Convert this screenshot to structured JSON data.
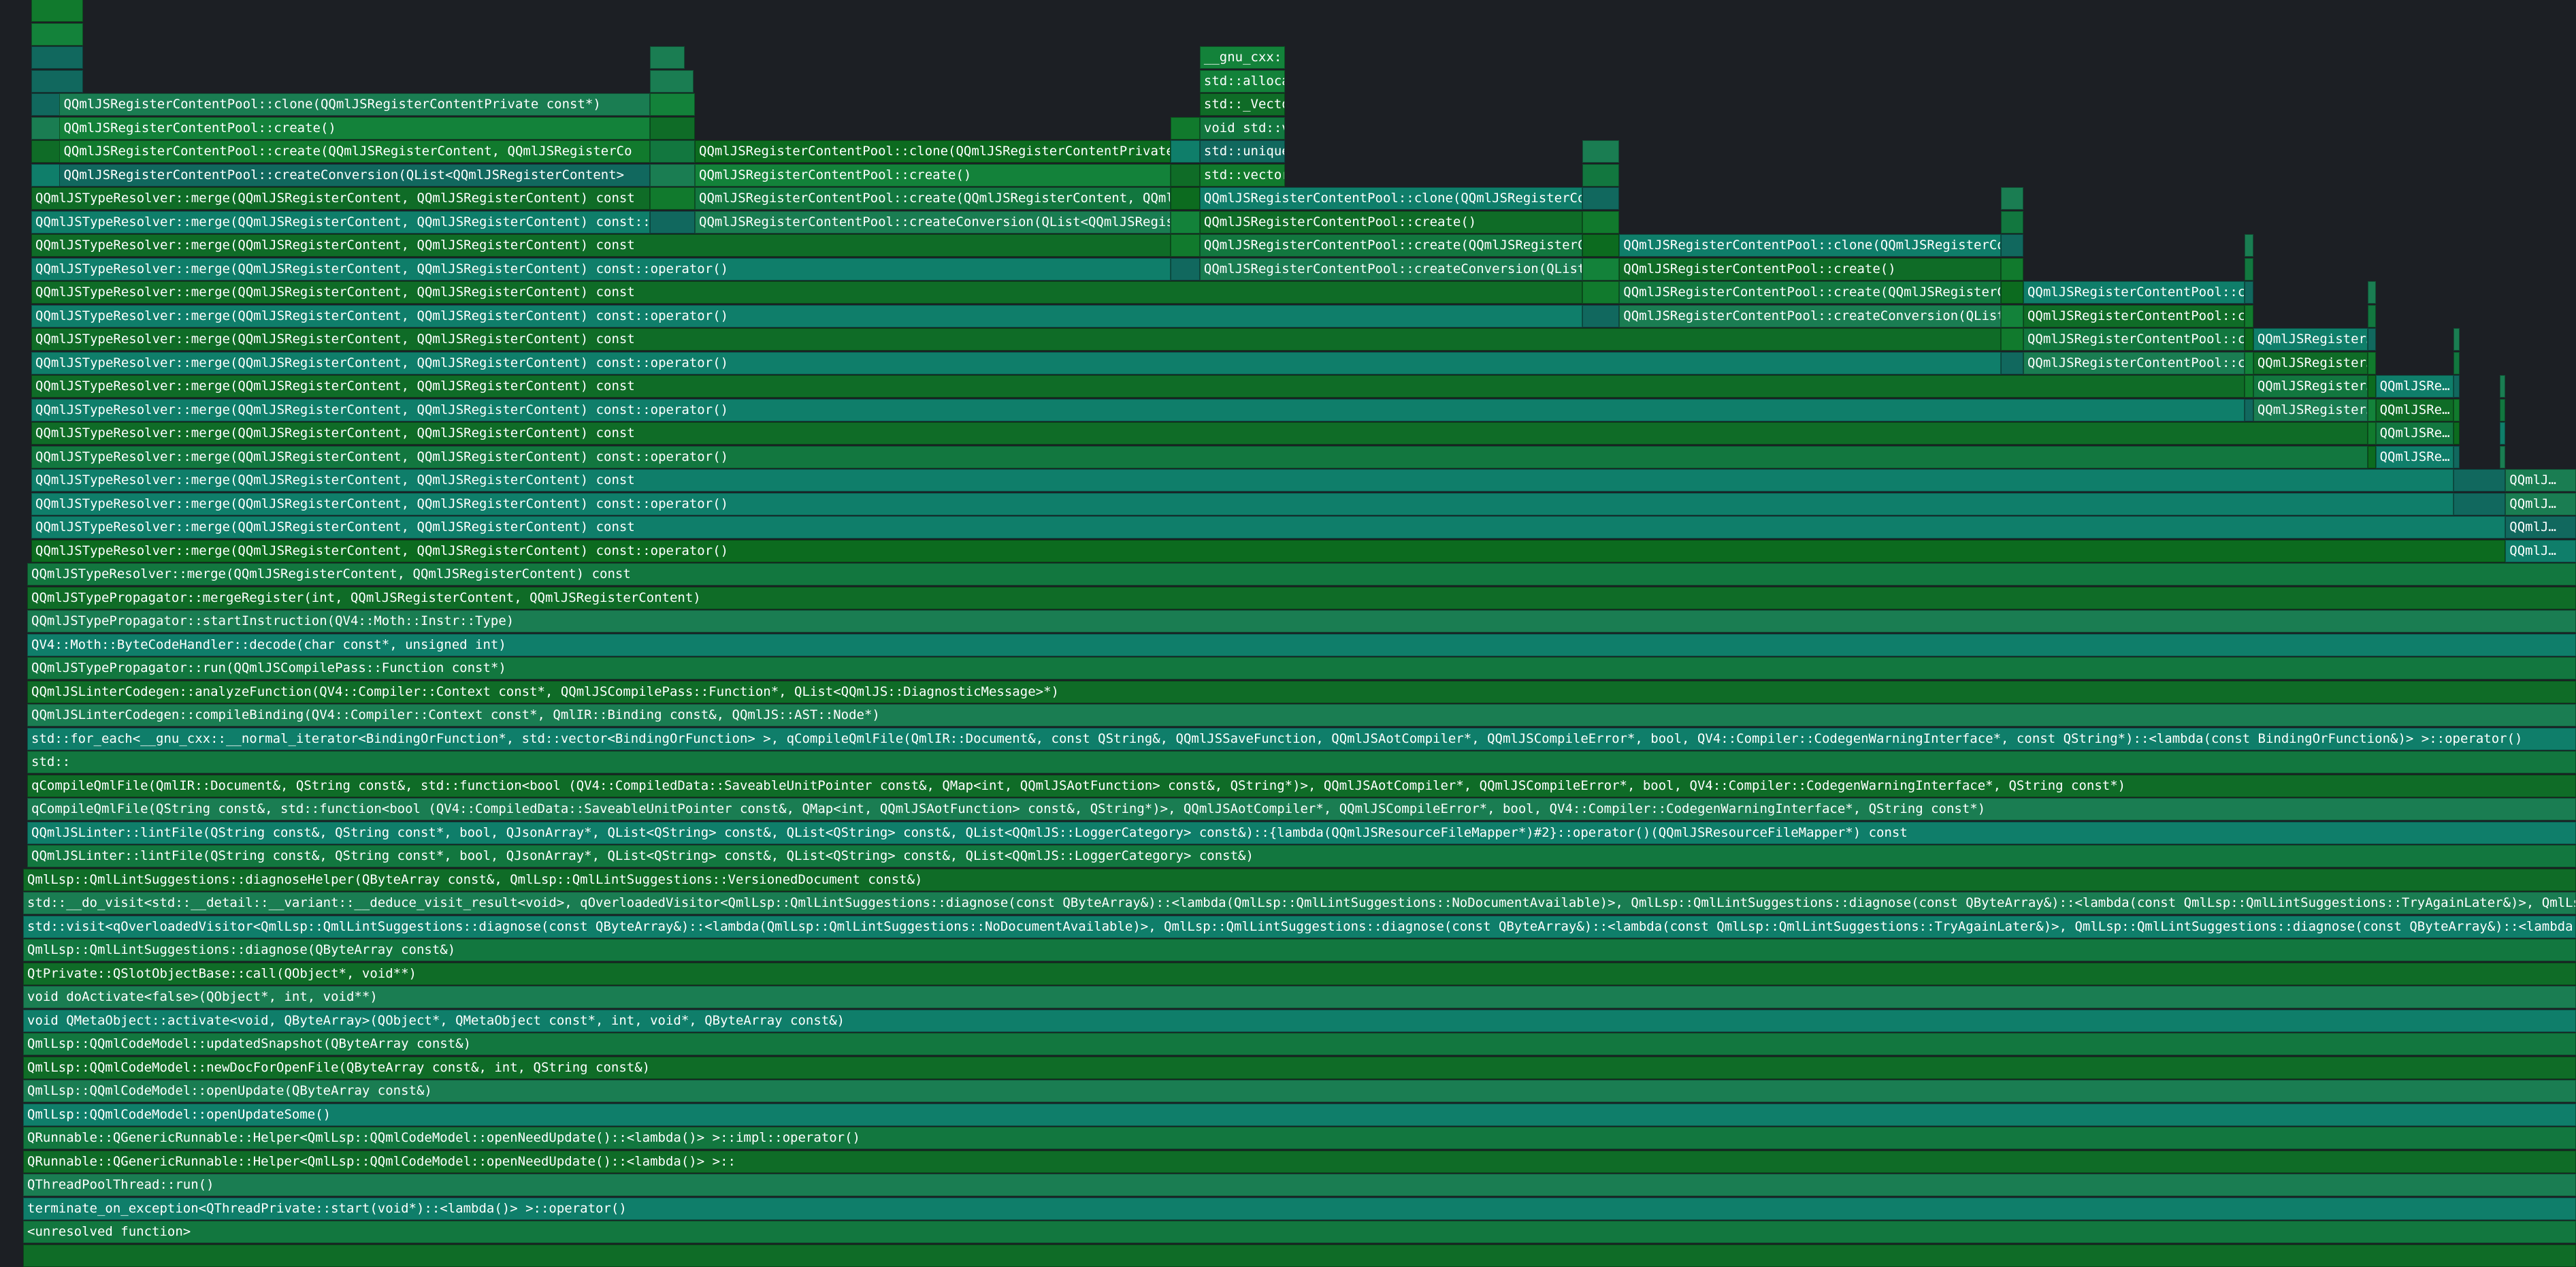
{
  "view": "flame-graph",
  "colors": [
    "#117a2d",
    "#0f6c27",
    "#13823a",
    "#1a7d52",
    "#11685e",
    "#0f7e6a",
    "#0c6b1f",
    "#12773f"
  ],
  "frames": [
    {
      "r": 0,
      "a": 0,
      "b": 42,
      "t": ""
    },
    {
      "r": 1,
      "a": 0,
      "b": 42,
      "t": ""
    },
    {
      "r": 2,
      "a": 0,
      "b": 42,
      "t": ""
    },
    {
      "r": 2,
      "a": 920,
      "b": 972,
      "t": ""
    },
    {
      "r": 2,
      "a": 1738,
      "b": 1865,
      "t": "__gnu_cxx::"
    },
    {
      "r": 3,
      "a": 0,
      "b": 42,
      "t": ""
    },
    {
      "r": 3,
      "a": 920,
      "b": 985,
      "t": ""
    },
    {
      "r": 3,
      "a": 1738,
      "b": 1865,
      "t": "std::alloca"
    },
    {
      "r": 4,
      "a": 0,
      "b": 42,
      "t": ""
    },
    {
      "r": 4,
      "a": 42,
      "b": 920,
      "t": "QQmlJSRegisterContentPool::clone(QQmlJSRegisterContentPrivate const*)"
    },
    {
      "r": 4,
      "a": 920,
      "b": 987,
      "t": ""
    },
    {
      "r": 4,
      "a": 1738,
      "b": 1865,
      "t": "std::_Vecto"
    },
    {
      "r": 5,
      "a": 0,
      "b": 42,
      "t": ""
    },
    {
      "r": 5,
      "a": 42,
      "b": 920,
      "t": "QQmlJSRegisterContentPool::create()"
    },
    {
      "r": 5,
      "a": 920,
      "b": 987,
      "t": ""
    },
    {
      "r": 5,
      "a": 1695,
      "b": 1738,
      "t": ""
    },
    {
      "r": 5,
      "a": 1738,
      "b": 1865,
      "t": "void std::v"
    },
    {
      "r": 6,
      "a": 0,
      "b": 42,
      "t": ""
    },
    {
      "r": 6,
      "a": 42,
      "b": 920,
      "t": "QQmlJSRegisterContentPool::create(QQmlJSRegisterContent, QQmlJSRegisterCo"
    },
    {
      "r": 6,
      "a": 920,
      "b": 987,
      "t": ""
    },
    {
      "r": 6,
      "a": 987,
      "b": 1695,
      "t": "QQmlJSRegisterContentPool::clone(QQmlJSRegisterContentPrivate cor"
    },
    {
      "r": 6,
      "a": 1695,
      "b": 1738,
      "t": ""
    },
    {
      "r": 6,
      "a": 1738,
      "b": 1865,
      "t": "std::unique"
    },
    {
      "r": 6,
      "a": 2307,
      "b": 2362,
      "t": ""
    },
    {
      "r": 7,
      "a": 0,
      "b": 42,
      "t": ""
    },
    {
      "r": 7,
      "a": 42,
      "b": 920,
      "t": "QQmlJSRegisterContentPool::createConversion(QList<QQmlJSRegisterContent>"
    },
    {
      "r": 7,
      "a": 920,
      "b": 987,
      "t": ""
    },
    {
      "r": 7,
      "a": 987,
      "b": 1695,
      "t": "QQmlJSRegisterContentPool::create()"
    },
    {
      "r": 7,
      "a": 1695,
      "b": 1738,
      "t": ""
    },
    {
      "r": 7,
      "a": 1738,
      "b": 1865,
      "t": "std::vector"
    },
    {
      "r": 7,
      "a": 2307,
      "b": 2362,
      "t": ""
    },
    {
      "r": 8,
      "a": 0,
      "b": 920,
      "t": "QQmlJSTypeResolver::merge(QQmlJSRegisterContent, QQmlJSRegisterContent) const"
    },
    {
      "r": 8,
      "a": 920,
      "b": 987,
      "t": ""
    },
    {
      "r": 8,
      "a": 987,
      "b": 1695,
      "t": "QQmlJSRegisterContentPool::create(QQmlJSRegisterContent, QQmlJSRe"
    },
    {
      "r": 8,
      "a": 1695,
      "b": 1738,
      "t": ""
    },
    {
      "r": 8,
      "a": 1738,
      "b": 2307,
      "t": "QQmlJSRegisterContentPool::clone(QQmlJSRegisterConte"
    },
    {
      "r": 8,
      "a": 2307,
      "b": 2362,
      "t": ""
    },
    {
      "r": 8,
      "a": 2930,
      "b": 2963,
      "t": ""
    },
    {
      "r": 9,
      "a": 0,
      "b": 920,
      "t": "QQmlJSTypeResolver::merge(QQmlJSRegisterContent, QQmlJSRegisterContent) const::o"
    },
    {
      "r": 9,
      "a": 920,
      "b": 987,
      "t": ""
    },
    {
      "r": 9,
      "a": 987,
      "b": 1695,
      "t": "QQmlJSRegisterContentPool::createConversion(QList<QQmlJSRegisterC"
    },
    {
      "r": 9,
      "a": 1695,
      "b": 1738,
      "t": ""
    },
    {
      "r": 9,
      "a": 1738,
      "b": 2307,
      "t": "QQmlJSRegisterContentPool::create()"
    },
    {
      "r": 9,
      "a": 2307,
      "b": 2362,
      "t": ""
    },
    {
      "r": 9,
      "a": 2930,
      "b": 2963,
      "t": ""
    },
    {
      "r": 10,
      "a": 0,
      "b": 1695,
      "t": "QQmlJSTypeResolver::merge(QQmlJSRegisterContent, QQmlJSRegisterContent) const"
    },
    {
      "r": 10,
      "a": 1695,
      "b": 1738,
      "t": ""
    },
    {
      "r": 10,
      "a": 1738,
      "b": 2307,
      "t": "QQmlJSRegisterContentPool::create(QQmlJSRegisterCont"
    },
    {
      "r": 10,
      "a": 2307,
      "b": 2362,
      "t": ""
    },
    {
      "r": 10,
      "a": 2362,
      "b": 2930,
      "t": "QQmlJSRegisterContentPool::clone(QQmlJSRegisterConte"
    },
    {
      "r": 10,
      "a": 2930,
      "b": 2963,
      "t": ""
    },
    {
      "r": 10,
      "a": 3292,
      "b": 3305,
      "t": ""
    },
    {
      "r": 11,
      "a": 0,
      "b": 1695,
      "t": "QQmlJSTypeResolver::merge(QQmlJSRegisterContent, QQmlJSRegisterContent) const::operator()"
    },
    {
      "r": 11,
      "a": 1695,
      "b": 1738,
      "t": ""
    },
    {
      "r": 11,
      "a": 1738,
      "b": 2307,
      "t": "QQmlJSRegisterContentPool::createConversion(QList<QQ"
    },
    {
      "r": 11,
      "a": 2307,
      "b": 2362,
      "t": ""
    },
    {
      "r": 11,
      "a": 2362,
      "b": 2930,
      "t": "QQmlJSRegisterContentPool::create()"
    },
    {
      "r": 11,
      "a": 2930,
      "b": 2963,
      "t": ""
    },
    {
      "r": 11,
      "a": 3292,
      "b": 3305,
      "t": ""
    },
    {
      "r": 12,
      "a": 0,
      "b": 2307,
      "t": "QQmlJSTypeResolver::merge(QQmlJSRegisterContent, QQmlJSRegisterContent) const"
    },
    {
      "r": 12,
      "a": 2307,
      "b": 2362,
      "t": ""
    },
    {
      "r": 12,
      "a": 2362,
      "b": 2930,
      "t": "QQmlJSRegisterContentPool::create(QQmlJSRegisterCont"
    },
    {
      "r": 12,
      "a": 2930,
      "b": 2963,
      "t": ""
    },
    {
      "r": 12,
      "a": 2963,
      "b": 3292,
      "t": "QQmlJSRegisterContentPool::cl"
    },
    {
      "r": 12,
      "a": 3292,
      "b": 3305,
      "t": ""
    },
    {
      "r": 12,
      "a": 3475,
      "b": 3487,
      "t": ""
    },
    {
      "r": 13,
      "a": 0,
      "b": 2307,
      "t": "QQmlJSTypeResolver::merge(QQmlJSRegisterContent, QQmlJSRegisterContent) const::operator()"
    },
    {
      "r": 13,
      "a": 2307,
      "b": 2362,
      "t": ""
    },
    {
      "r": 13,
      "a": 2362,
      "b": 2930,
      "t": "QQmlJSRegisterContentPool::createConversion(QList<QQ"
    },
    {
      "r": 13,
      "a": 2930,
      "b": 2963,
      "t": ""
    },
    {
      "r": 13,
      "a": 2963,
      "b": 3292,
      "t": "QQmlJSRegisterContentPool::cr"
    },
    {
      "r": 13,
      "a": 3292,
      "b": 3305,
      "t": ""
    },
    {
      "r": 13,
      "a": 3475,
      "b": 3487,
      "t": ""
    },
    {
      "r": 14,
      "a": 0,
      "b": 2930,
      "t": "QQmlJSTypeResolver::merge(QQmlJSRegisterContent, QQmlJSRegisterContent) const"
    },
    {
      "r": 14,
      "a": 2930,
      "b": 2963,
      "t": ""
    },
    {
      "r": 14,
      "a": 2963,
      "b": 3292,
      "t": "QQmlJSRegisterContentPool::cr"
    },
    {
      "r": 14,
      "a": 3292,
      "b": 3305,
      "t": ""
    },
    {
      "r": 14,
      "a": 3305,
      "b": 3475,
      "t": "QQmlJSRegister…"
    },
    {
      "r": 14,
      "a": 3475,
      "b": 3487,
      "t": ""
    },
    {
      "r": 14,
      "a": 3603,
      "b": 3612,
      "t": ""
    },
    {
      "r": 15,
      "a": 0,
      "b": 2930,
      "t": "QQmlJSTypeResolver::merge(QQmlJSRegisterContent, QQmlJSRegisterContent) const::operator()"
    },
    {
      "r": 15,
      "a": 2930,
      "b": 2963,
      "t": ""
    },
    {
      "r": 15,
      "a": 2963,
      "b": 3292,
      "t": "QQmlJSRegisterContentPool::cr"
    },
    {
      "r": 15,
      "a": 3292,
      "b": 3305,
      "t": ""
    },
    {
      "r": 15,
      "a": 3305,
      "b": 3475,
      "t": "QQmlJSRegister…"
    },
    {
      "r": 15,
      "a": 3475,
      "b": 3487,
      "t": ""
    },
    {
      "r": 15,
      "a": 3603,
      "b": 3612,
      "t": ""
    },
    {
      "r": 16,
      "a": 0,
      "b": 3292,
      "t": "QQmlJSTypeResolver::merge(QQmlJSRegisterContent, QQmlJSRegisterContent) const"
    },
    {
      "r": 16,
      "a": 3292,
      "b": 3305,
      "t": ""
    },
    {
      "r": 16,
      "a": 3305,
      "b": 3475,
      "t": "QQmlJSRegister…"
    },
    {
      "r": 16,
      "a": 3475,
      "b": 3487,
      "t": ""
    },
    {
      "r": 16,
      "a": 3487,
      "b": 3603,
      "t": "QQmlJSRe…"
    },
    {
      "r": 16,
      "a": 3603,
      "b": 3612,
      "t": ""
    },
    {
      "r": 16,
      "a": 3672,
      "b": 3680,
      "t": ""
    },
    {
      "r": 17,
      "a": 0,
      "b": 3292,
      "t": "QQmlJSTypeResolver::merge(QQmlJSRegisterContent, QQmlJSRegisterContent) const::operator()"
    },
    {
      "r": 17,
      "a": 3292,
      "b": 3305,
      "t": ""
    },
    {
      "r": 17,
      "a": 3305,
      "b": 3475,
      "t": "QQmlJSRegister…"
    },
    {
      "r": 17,
      "a": 3475,
      "b": 3487,
      "t": ""
    },
    {
      "r": 17,
      "a": 3487,
      "b": 3603,
      "t": "QQmlJSRe…"
    },
    {
      "r": 17,
      "a": 3603,
      "b": 3612,
      "t": ""
    },
    {
      "r": 17,
      "a": 3672,
      "b": 3680,
      "t": ""
    },
    {
      "r": 18,
      "a": 0,
      "b": 3475,
      "t": "QQmlJSTypeResolver::merge(QQmlJSRegisterContent, QQmlJSRegisterContent) const"
    },
    {
      "r": 18,
      "a": 3475,
      "b": 3487,
      "t": ""
    },
    {
      "r": 18,
      "a": 3487,
      "b": 3603,
      "t": "QQmlJSRe…"
    },
    {
      "r": 18,
      "a": 3603,
      "b": 3612,
      "t": ""
    },
    {
      "r": 18,
      "a": 3672,
      "b": 3680,
      "t": ""
    },
    {
      "r": 19,
      "a": 0,
      "b": 3475,
      "t": "QQmlJSTypeResolver::merge(QQmlJSRegisterContent, QQmlJSRegisterContent) const::operator()"
    },
    {
      "r": 19,
      "a": 3475,
      "b": 3487,
      "t": ""
    },
    {
      "r": 19,
      "a": 3487,
      "b": 3603,
      "t": "QQmlJSRe…"
    },
    {
      "r": 19,
      "a": 3603,
      "b": 3612,
      "t": ""
    },
    {
      "r": 19,
      "a": 3672,
      "b": 3680,
      "t": ""
    },
    {
      "r": 20,
      "a": 0,
      "b": 3603,
      "t": "QQmlJSTypeResolver::merge(QQmlJSRegisterContent, QQmlJSRegisterContent) const"
    },
    {
      "r": 20,
      "a": 3603,
      "b": 3680,
      "t": ""
    },
    {
      "r": 20,
      "a": 3680,
      "b": 3785,
      "t": "QQmlJ…"
    },
    {
      "r": 21,
      "a": 0,
      "b": 3603,
      "t": "QQmlJSTypeResolver::merge(QQmlJSRegisterContent, QQmlJSRegisterContent) const::operator()"
    },
    {
      "r": 21,
      "a": 3603,
      "b": 3680,
      "t": ""
    },
    {
      "r": 21,
      "a": 3680,
      "b": 3785,
      "t": "QQmlJ…"
    },
    {
      "r": 22,
      "a": 0,
      "b": 3680,
      "t": "QQmlJSTypeResolver::merge(QQmlJSRegisterContent, QQmlJSRegisterContent) const"
    },
    {
      "r": 22,
      "a": 3680,
      "b": 3785,
      "t": "QQmlJ…"
    },
    {
      "r": 23,
      "a": 0,
      "b": 3680,
      "t": "QQmlJSTypeResolver::merge(QQmlJSRegisterContent, QQmlJSRegisterContent) const::operator()"
    },
    {
      "r": 23,
      "a": 3680,
      "b": 3785,
      "t": "QQmlJ…"
    },
    {
      "r": 24,
      "a": 0,
      "b": 3785,
      "t": "QQmlJSTypeResolver::merge(QQmlJSRegisterContent, QQmlJSRegisterContent) const"
    },
    {
      "r": 25,
      "a": 0,
      "b": 3785,
      "t": "QQmlJSTypePropagator::mergeRegister(int, QQmlJSRegisterContent, QQmlJSRegisterContent)"
    },
    {
      "r": 26,
      "a": 0,
      "b": 3785,
      "t": "QQmlJSTypePropagator::startInstruction(QV4::Moth::Instr::Type)"
    },
    {
      "r": 27,
      "a": 0,
      "b": 3785,
      "t": "QV4::Moth::ByteCodeHandler::decode(char const*, unsigned int)"
    },
    {
      "r": 28,
      "a": 0,
      "b": 3785,
      "t": "QQmlJSTypePropagator::run(QQmlJSCompilePass::Function const*)"
    },
    {
      "r": 29,
      "a": 0,
      "b": 3785,
      "t": "QQmlJSLinterCodegen::analyzeFunction(QV4::Compiler::Context const*, QQmlJSCompilePass::Function*, QList<QQmlJS::DiagnosticMessage>*)"
    },
    {
      "r": 30,
      "a": 0,
      "b": 3785,
      "t": "QQmlJSLinterCodegen::compileBinding(QV4::Compiler::Context const*, QmlIR::Binding const&, QQmlJS::AST::Node*)"
    },
    {
      "r": 31,
      "a": 0,
      "b": 3785,
      "t": "std::for_each<__gnu_cxx::__normal_iterator<BindingOrFunction*, std::vector<BindingOrFunction> >, qCompileQmlFile(QmlIR::Document&, const QString&, QQmlJSSaveFunction, QQmlJSAotCompiler*, QQmlJSCompileError*, bool, QV4::Compiler::CodegenWarningInterface*, const QString*)::<lambda(const BindingOrFunction&)> >::operator()"
    },
    {
      "r": 32,
      "a": 0,
      "b": 3785,
      "t": "std::"
    },
    {
      "r": 33,
      "a": 0,
      "b": 3785,
      "t": "qCompileQmlFile(QmlIR::Document&, QString const&, std::function<bool (QV4::CompiledData::SaveableUnitPointer const&, QMap<int, QQmlJSAotFunction> const&, QString*)>, QQmlJSAotCompiler*, QQmlJSCompileError*, bool, QV4::Compiler::CodegenWarningInterface*, QString const*)"
    },
    {
      "r": 34,
      "a": 0,
      "b": 3785,
      "t": "qCompileQmlFile(QString const&, std::function<bool (QV4::CompiledData::SaveableUnitPointer const&, QMap<int, QQmlJSAotFunction> const&, QString*)>, QQmlJSAotCompiler*, QQmlJSCompileError*, bool, QV4::Compiler::CodegenWarningInterface*, QString const*)"
    },
    {
      "r": 35,
      "a": 0,
      "b": 3785,
      "t": "QQmlJSLinter::lintFile(QString const&, QString const*, bool, QJsonArray*, QList<QString> const&, QList<QString> const&, QList<QQmlJS::LoggerCategory> const&)::{lambda(QQmlJSResourceFileMapper*)#2}::operator()(QQmlJSResourceFileMapper*) const"
    },
    {
      "r": 36,
      "a": 0,
      "b": 3785,
      "t": "QQmlJSLinter::lintFile(QString const&, QString const*, bool, QJsonArray*, QList<QString> const&, QList<QString> const&, QList<QQmlJS::LoggerCategory> const&)"
    },
    {
      "r": 37,
      "a": 0,
      "b": 3785,
      "t": "QmlLsp::QmlLintSuggestions::diagnoseHelper(QByteArray const&, QmlLsp::QmlLintSuggestions::VersionedDocument const&)"
    },
    {
      "r": 38,
      "a": 0,
      "b": 3785,
      "t": "std::__do_visit<std::__detail::__variant::__deduce_visit_result<void>, qOverloadedVisitor<QmlLsp::QmlLintSuggestions::diagnose(const QByteArray&)::<lambda(QmlLsp::QmlLintSuggestions::NoDocumentAvailable)>, QmlLsp::QmlLintSuggestions::diagnose(const QByteArray&)::<lambda(const QmlLsp::QmlLintSuggestions::TryAgainLater&)>, QmlLsp::QmlLintSuggesti"
    },
    {
      "r": 39,
      "a": 0,
      "b": 3785,
      "t": "std::visit<qOverloadedVisitor<QmlLsp::QmlLintSuggestions::diagnose(const QByteArray&)::<lambda(QmlLsp::QmlLintSuggestions::NoDocumentAvailable)>, QmlLsp::QmlLintSuggestions::diagnose(const QByteArray&)::<lambda(const QmlLsp::QmlLintSuggestions::TryAgainLater&)>, QmlLsp::QmlLintSuggestions::diagnose(const QByteArray&)::<lambda(const QmlLsp::Qml"
    },
    {
      "r": 40,
      "a": 0,
      "b": 3785,
      "t": "QmlLsp::QmlLintSuggestions::diagnose(QByteArray const&)"
    },
    {
      "r": 41,
      "a": 0,
      "b": 3785,
      "t": "QtPrivate::QSlotObjectBase::call(QObject*, void**)"
    },
    {
      "r": 42,
      "a": 0,
      "b": 3785,
      "t": "void doActivate<false>(QObject*, int, void**)"
    },
    {
      "r": 43,
      "a": 0,
      "b": 3785,
      "t": "void QMetaObject::activate<void, QByteArray>(QObject*, QMetaObject const*, int, void*, QByteArray const&)"
    },
    {
      "r": 44,
      "a": 0,
      "b": 3785,
      "t": "QmlLsp::QQmlCodeModel::updatedSnapshot(QByteArray const&)"
    },
    {
      "r": 45,
      "a": 0,
      "b": 3785,
      "t": "QmlLsp::QQmlCodeModel::newDocForOpenFile(QByteArray const&, int, QString const&)"
    },
    {
      "r": 46,
      "a": 0,
      "b": 3785,
      "t": "QmlLsp::QQmlCodeModel::openUpdate(QByteArray const&)"
    },
    {
      "r": 47,
      "a": 0,
      "b": 3785,
      "t": "QmlLsp::QQmlCodeModel::openUpdateSome()"
    },
    {
      "r": 48,
      "a": 0,
      "b": 3785,
      "t": "QRunnable::QGenericRunnable::Helper<QmlLsp::QQmlCodeModel::openNeedUpdate()::<lambda()> >::impl::operator()"
    },
    {
      "r": 49,
      "a": 0,
      "b": 3785,
      "t": "QRunnable::QGenericRunnable::Helper<QmlLsp::QQmlCodeModel::openNeedUpdate()::<lambda()> >::"
    },
    {
      "r": 50,
      "a": 0,
      "b": 3785,
      "t": "QThreadPoolThread::run()"
    },
    {
      "r": 51,
      "a": 0,
      "b": 3785,
      "t": "terminate_on_exception<QThreadPrivate::start(void*)::<lambda()> >::operator()"
    },
    {
      "r": 52,
      "a": 0,
      "b": 3785,
      "t": "<unresolved function>"
    },
    {
      "r": 53,
      "a": 0,
      "b": 3785,
      "t": ""
    }
  ]
}
